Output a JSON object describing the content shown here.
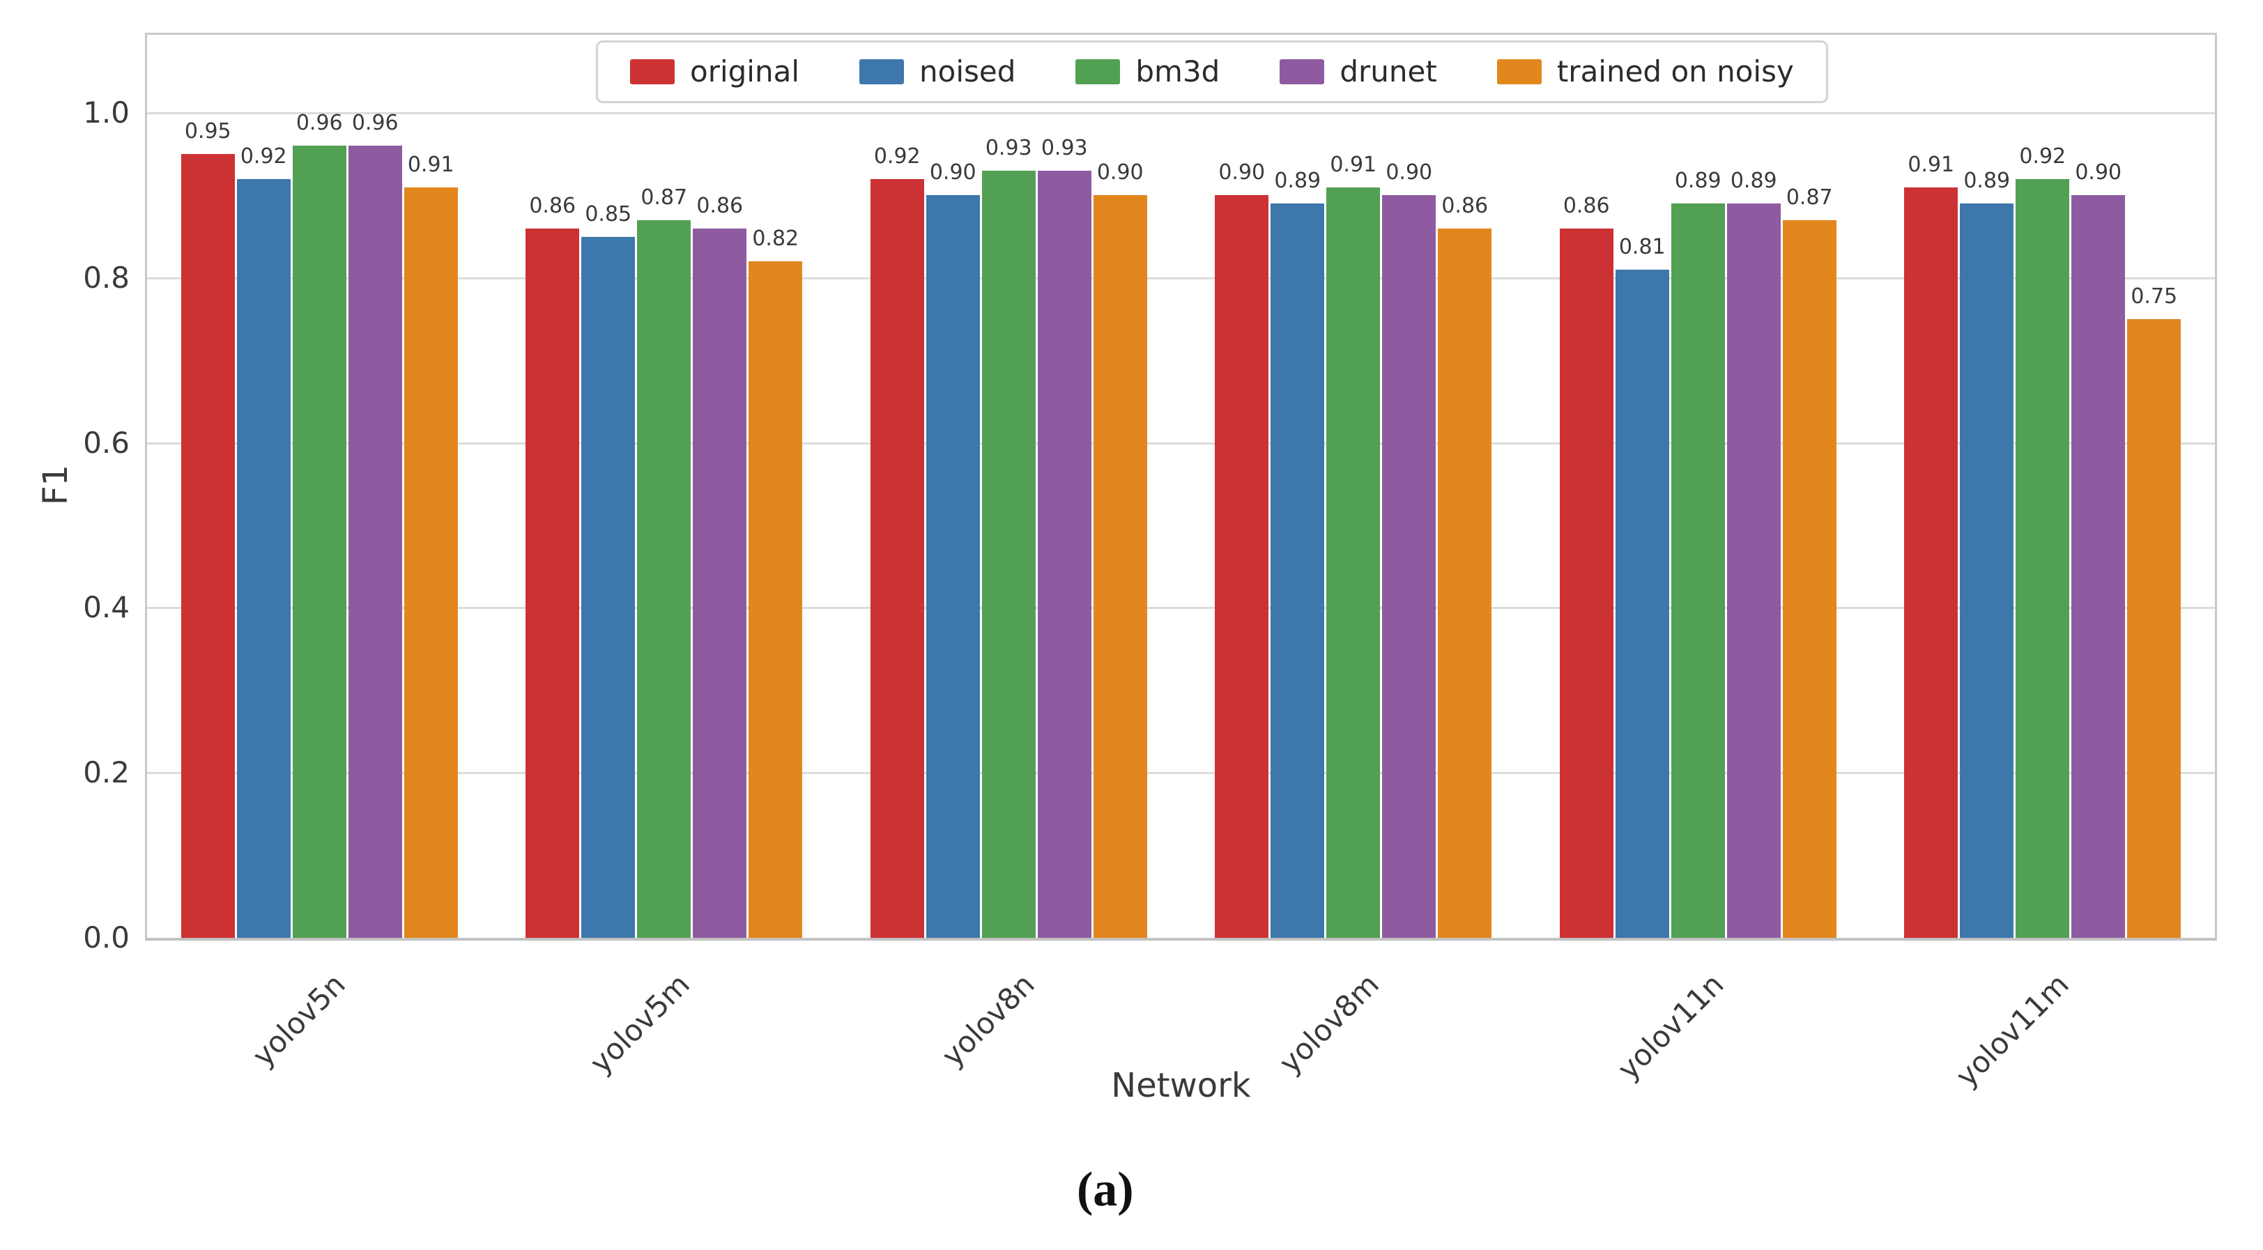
{
  "figure": {
    "caption": "(a)"
  },
  "chart_data": {
    "type": "bar",
    "title": "",
    "xlabel": "Network",
    "ylabel": "F1",
    "categories": [
      "yolov5n",
      "yolov5m",
      "yolov8n",
      "yolov8m",
      "yolov11n",
      "yolov11m"
    ],
    "series": [
      {
        "name": "original",
        "color": "#cc3234",
        "values": [
          0.95,
          0.86,
          0.92,
          0.9,
          0.86,
          0.91
        ]
      },
      {
        "name": "noised",
        "color": "#3e77ab",
        "values": [
          0.92,
          0.85,
          0.9,
          0.89,
          0.81,
          0.89
        ]
      },
      {
        "name": "bm3d",
        "color": "#52a053",
        "values": [
          0.96,
          0.87,
          0.93,
          0.91,
          0.89,
          0.92
        ]
      },
      {
        "name": "drunet",
        "color": "#8e5ba1",
        "values": [
          0.96,
          0.86,
          0.93,
          0.9,
          0.89,
          0.9
        ]
      },
      {
        "name": "trained on noisy",
        "color": "#e2871d",
        "values": [
          0.91,
          0.82,
          0.9,
          0.86,
          0.87,
          0.75
        ]
      }
    ],
    "yticks": [
      "0.0",
      "0.2",
      "0.4",
      "0.6",
      "0.8",
      "1.0"
    ],
    "ylim": [
      0.0,
      1.095
    ],
    "bar_value_labels_format": "0.00",
    "grid": "horizontal",
    "legend_position": "upper center",
    "colors": {
      "gridline": "#dcdcdc",
      "spine": "#c9c9c9",
      "tick_text": "#3a3a3a",
      "background": "#ffffff"
    }
  }
}
